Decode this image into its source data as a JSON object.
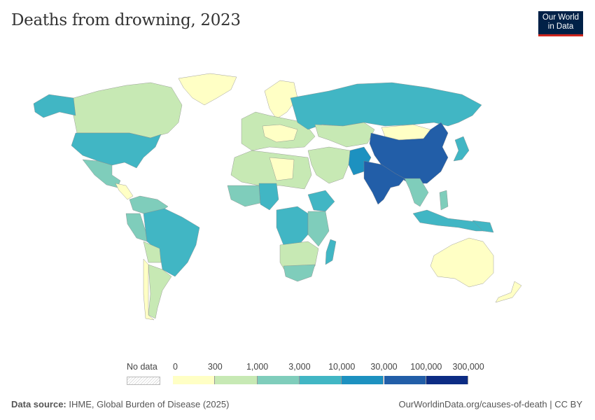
{
  "title": "Deaths from drowning, 2023",
  "logo": {
    "line1": "Our World",
    "line2": "in Data"
  },
  "legend": {
    "no_data_label": "No data",
    "ticks": [
      "0",
      "300",
      "1,000",
      "3,000",
      "10,000",
      "30,000",
      "100,000",
      "300,000"
    ],
    "colors": [
      "#ffffc5",
      "#c7e9b4",
      "#7fcdbb",
      "#41b6c4",
      "#1d91c0",
      "#225ea8",
      "#0c2c84"
    ]
  },
  "footer": {
    "source_label": "Data source:",
    "source": "IHME, Global Burden of Disease (2025)",
    "link": "OurWorldinData.org/causes-of-death",
    "license": "CC BY"
  }
}
